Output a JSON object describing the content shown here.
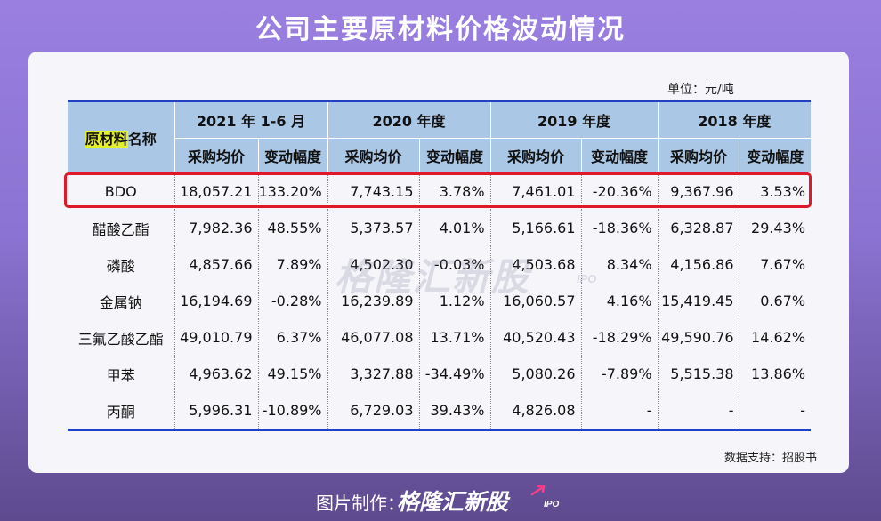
{
  "title": "公司主要原材料价格波动情况",
  "unit": "单位：元/吨",
  "colors": {
    "header_bg": "#abc7e6",
    "highlight": "#e4ee2a",
    "rule": "#2040c8",
    "box": "#e0192a"
  },
  "table": {
    "name_header": {
      "highlight": "原材料",
      "rest": "名称"
    },
    "years": [
      "2021 年 1-6 月",
      "2020 年度",
      "2019 年度",
      "2018 年度"
    ],
    "sub_headers": [
      "采购均价",
      "变动幅度"
    ],
    "rows": [
      {
        "name": "BDO",
        "values": [
          "18,057.21",
          "133.20%",
          "7,743.15",
          "3.78%",
          "7,461.01",
          "-20.36%",
          "9,367.96",
          "3.53%"
        ]
      },
      {
        "name": "醋酸乙酯",
        "values": [
          "7,982.36",
          "48.55%",
          "5,373.57",
          "4.01%",
          "5,166.61",
          "-18.36%",
          "6,328.87",
          "29.43%"
        ]
      },
      {
        "name": "磷酸",
        "values": [
          "4,857.66",
          "7.89%",
          "4,502.30",
          "-0.03%",
          "4,503.68",
          "8.34%",
          "4,156.86",
          "7.67%"
        ]
      },
      {
        "name": "金属钠",
        "values": [
          "16,194.69",
          "-0.28%",
          "16,239.89",
          "1.12%",
          "16,060.57",
          "4.16%",
          "15,419.45",
          "0.67%"
        ]
      },
      {
        "name": "三氟乙酸乙酯",
        "values": [
          "49,010.79",
          "6.37%",
          "46,077.08",
          "13.71%",
          "40,520.43",
          "-18.29%",
          "49,590.76",
          "14.62%"
        ]
      },
      {
        "name": "甲苯",
        "values": [
          "4,963.62",
          "49.15%",
          "3,327.88",
          "-34.49%",
          "5,080.26",
          "-7.89%",
          "5,515.38",
          "13.86%"
        ]
      },
      {
        "name": "丙酮",
        "values": [
          "5,996.31",
          "-10.89%",
          "6,729.03",
          "39.43%",
          "4,826.08",
          "-",
          "-",
          "-"
        ]
      }
    ]
  },
  "watermark": {
    "text": "格隆汇新股",
    "suffix": "IPO"
  },
  "source": "数据支持：招股书",
  "footer": {
    "label": "图片制作：",
    "brand": "格隆汇新股",
    "suffix": "IPO",
    "icon": "arrow-up-right-icon"
  }
}
